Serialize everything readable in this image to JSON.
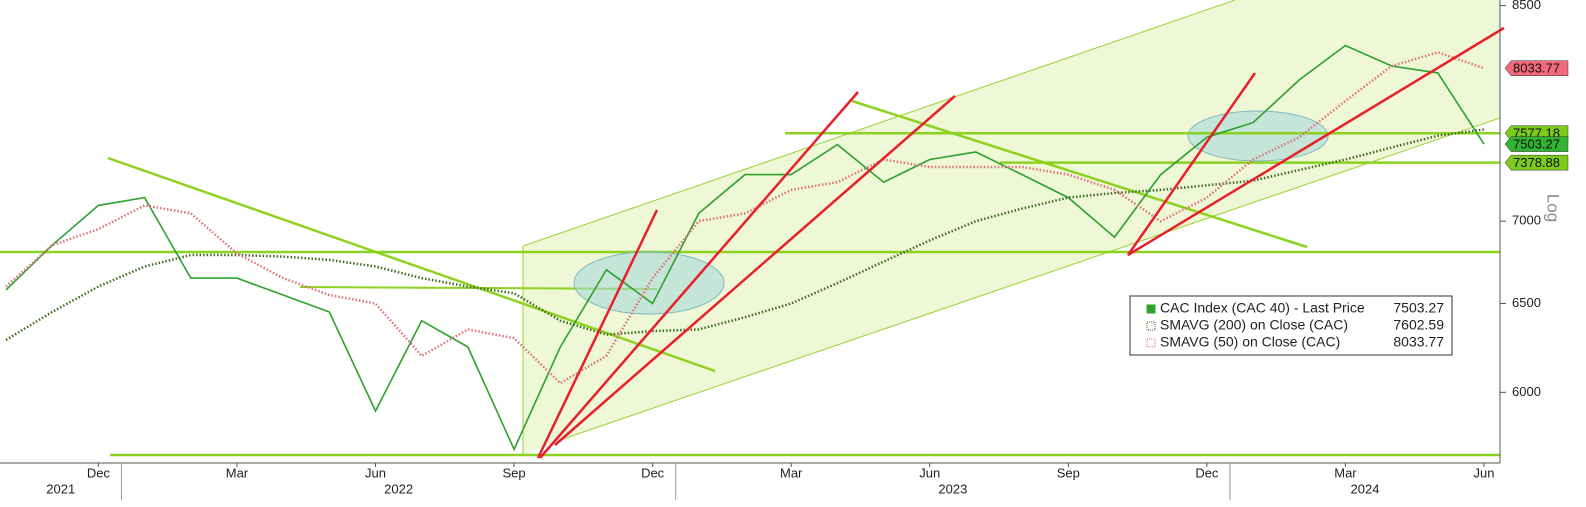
{
  "chart_data": {
    "type": "line",
    "scale": "log",
    "x": [
      "2021-10",
      "2021-11",
      "2021-12",
      "2022-01",
      "2022-02",
      "2022-03",
      "2022-04",
      "2022-05",
      "2022-06",
      "2022-07",
      "2022-08",
      "2022-09",
      "2022-10",
      "2022-11",
      "2022-12",
      "2023-01",
      "2023-02",
      "2023-03",
      "2023-04",
      "2023-05",
      "2023-06",
      "2023-07",
      "2023-08",
      "2023-09",
      "2023-10",
      "2023-11",
      "2023-12",
      "2024-01",
      "2024-02",
      "2024-03",
      "2024-04",
      "2024-05",
      "2024-06"
    ],
    "xlim": [
      "2021-10",
      "2024-06"
    ],
    "xticks": [
      {
        "value": "2021-12",
        "label": "Dec"
      },
      {
        "value": "2022-03",
        "label": "Mar"
      },
      {
        "value": "2022-06",
        "label": "Jun"
      },
      {
        "value": "2022-09",
        "label": "Sep"
      },
      {
        "value": "2022-12",
        "label": "Dec"
      },
      {
        "value": "2023-03",
        "label": "Mar"
      },
      {
        "value": "2023-06",
        "label": "Jun"
      },
      {
        "value": "2023-09",
        "label": "Sep"
      },
      {
        "value": "2023-12",
        "label": "Dec"
      },
      {
        "value": "2024-03",
        "label": "Mar"
      },
      {
        "value": "2024-06",
        "label": "Jun"
      }
    ],
    "year_ticks": [
      {
        "value": "2021-10",
        "label": "2021"
      },
      {
        "value": "2022-01",
        "label": "2022"
      },
      {
        "value": "2023-01",
        "label": "2023"
      },
      {
        "value": "2024-01",
        "label": "2024"
      }
    ],
    "ylim": [
      5630,
      8520
    ],
    "yticks": [
      6000,
      6500,
      7000,
      8500
    ],
    "y_label": "Log",
    "series": [
      {
        "name": "CAC Index (CAC 40) - Last Price",
        "color": "#2ea12e",
        "style": "solid",
        "last": 7503.27,
        "values": [
          6580,
          6850,
          7100,
          7150,
          6650,
          6650,
          6550,
          6450,
          5900,
          6400,
          6250,
          5700,
          6250,
          6700,
          6500,
          7050,
          7300,
          7300,
          7500,
          7250,
          7400,
          7450,
          7300,
          7150,
          6900,
          7300,
          7550,
          7650,
          7950,
          8200,
          8050,
          8000,
          7503.27
        ]
      },
      {
        "name": "SMAVG (200)  on Close (CAC)",
        "color": "#3d6b1f",
        "style": "dotted",
        "last": 7602.59,
        "values": [
          6290,
          6450,
          6600,
          6720,
          6790,
          6790,
          6780,
          6760,
          6720,
          6650,
          6600,
          6560,
          6400,
          6320,
          6340,
          6350,
          6420,
          6500,
          6620,
          6750,
          6880,
          7000,
          7080,
          7150,
          7180,
          7200,
          7230,
          7260,
          7330,
          7400,
          7480,
          7560,
          7602.59
        ]
      },
      {
        "name": "SMAVG (50)  on Close (CAC)",
        "color": "#e0707a",
        "style": "dotted",
        "last": 8033.77,
        "values": [
          6600,
          6850,
          6950,
          7100,
          7050,
          6800,
          6650,
          6550,
          6500,
          6200,
          6350,
          6300,
          6050,
          6200,
          6650,
          7000,
          7050,
          7200,
          7250,
          7400,
          7350,
          7350,
          7350,
          7300,
          7200,
          7000,
          7150,
          7400,
          7550,
          7800,
          8050,
          8150,
          8033.77
        ]
      }
    ],
    "levels": [
      {
        "value": 7577.18,
        "color": "#8cd21e"
      },
      {
        "value": 7378.88,
        "color": "#8cd21e"
      }
    ],
    "price_tags": [
      {
        "value": 8033.77,
        "color": "#f2697a"
      },
      {
        "value": 7577.18,
        "color": "#7ccc1c"
      },
      {
        "value": 7503.27,
        "color": "#32b432"
      },
      {
        "value": 7378.88,
        "color": "#7ccc1c"
      }
    ]
  }
}
